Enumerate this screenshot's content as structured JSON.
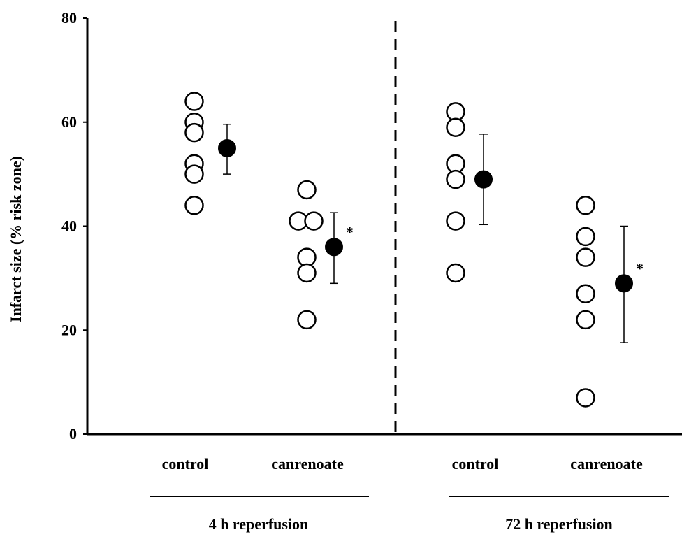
{
  "chart_data": {
    "type": "scatter",
    "ylabel": "Infarct size (% risk zone)",
    "ylim": [
      0,
      80
    ],
    "yticks": [
      "0",
      "20",
      "40",
      "60",
      "80"
    ],
    "grid": false,
    "groups": [
      {
        "label": "4 h reperfusion",
        "categories": [
          {
            "label": "control",
            "individual": [
              64,
              60,
              58,
              52,
              50,
              44
            ],
            "mean": 55,
            "err_low": 50,
            "err_high": 59.6,
            "significance": ""
          },
          {
            "label": "canrenoate",
            "individual": [
              47,
              41,
              41,
              34,
              31,
              22
            ],
            "mean": 36,
            "err_low": 29,
            "err_high": 42.6,
            "significance": "*"
          }
        ]
      },
      {
        "label": "72 h reperfusion",
        "categories": [
          {
            "label": "control",
            "individual": [
              62,
              59,
              52,
              49,
              41,
              31
            ],
            "mean": 49,
            "err_low": 40.3,
            "err_high": 57.7,
            "significance": ""
          },
          {
            "label": "canrenoate",
            "individual": [
              44,
              38,
              34,
              27,
              22,
              7
            ],
            "mean": 29,
            "err_low": 17.6,
            "err_high": 40,
            "significance": "*"
          }
        ]
      }
    ],
    "colors": {
      "individual_fill": "#ffffff",
      "mean_fill": "#000000",
      "stroke": "#000000"
    }
  }
}
